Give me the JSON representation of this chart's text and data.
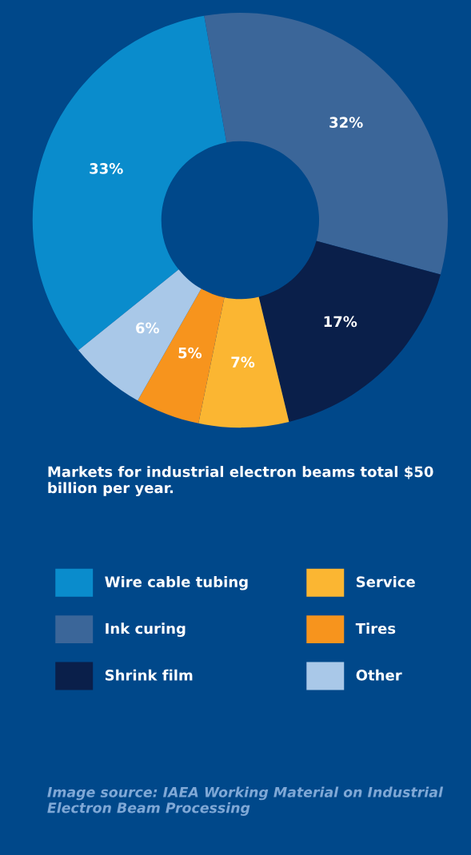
{
  "chart_data": {
    "type": "donut",
    "title": "Markets for industrial electron beams total $50 billion per year.",
    "categories": [
      "Wire cable tubing",
      "Ink curing",
      "Shrink film",
      "Service",
      "Tires",
      "Other"
    ],
    "values": [
      33,
      32,
      17,
      7,
      5,
      6
    ],
    "value_labels": [
      "33%",
      "32%",
      "17%",
      "7%",
      "5%",
      "6%"
    ],
    "colors": [
      "#0a8ccc",
      "#3b6699",
      "#0a1f4a",
      "#fbb632",
      "#f7941d",
      "#a9c8e8"
    ],
    "legend": "bottom",
    "annotations": [
      "Image source: IAEA Working Material on Industrial Electron Beam Processing"
    ]
  }
}
